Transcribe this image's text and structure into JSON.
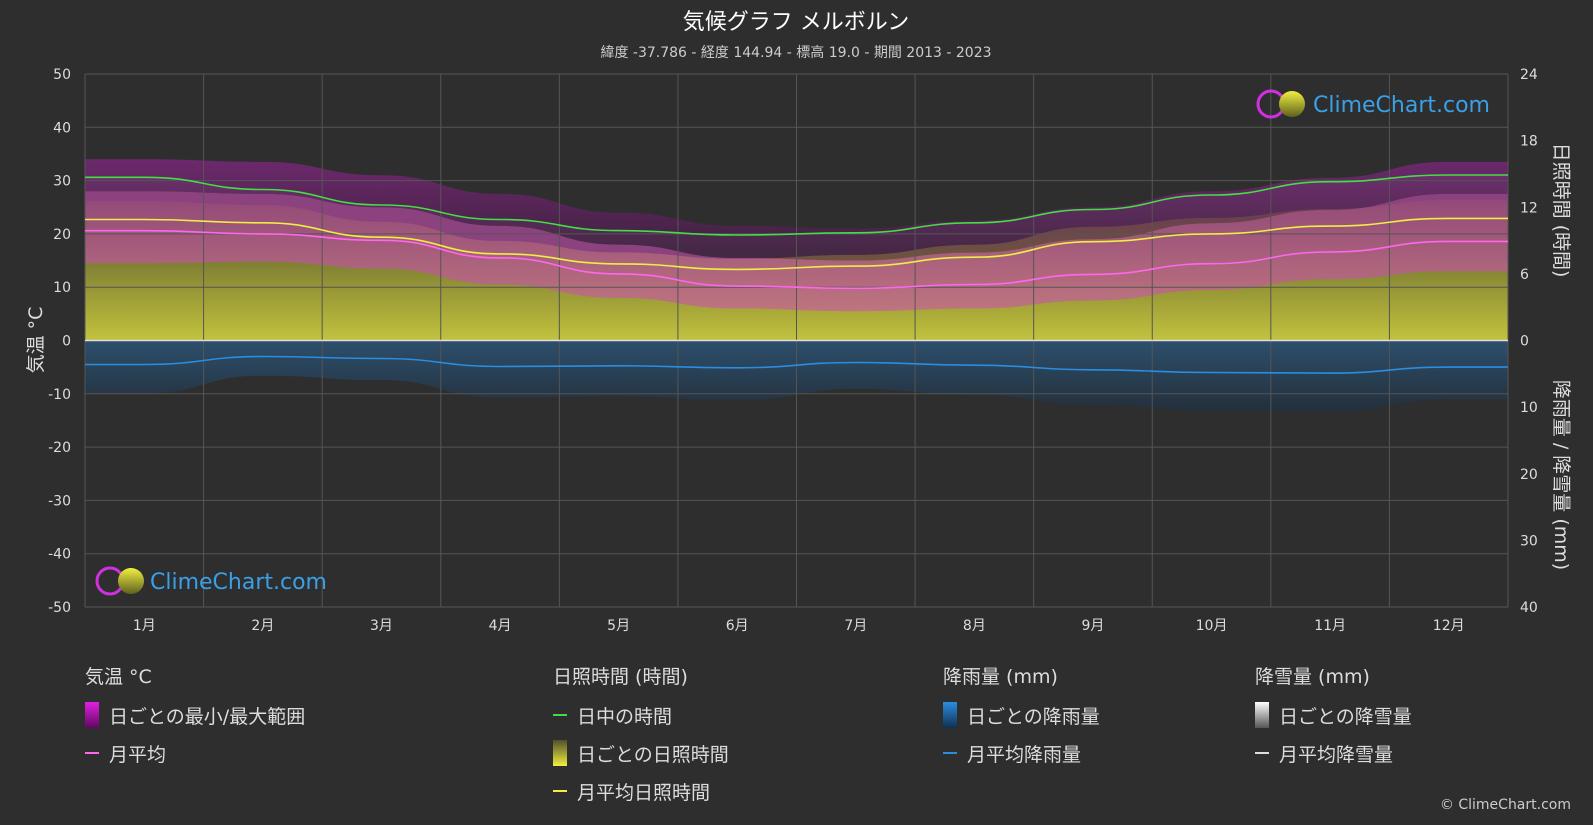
{
  "chart_data": {
    "type": "area",
    "title": "気候グラフ メルボルン",
    "subtitle": "緯度 -37.786 - 経度 144.94 - 標高 19.0 - 期間 2013 - 2023",
    "ylabel_left": "気温 °C",
    "ylabel_right_top": "日照時間 (時間)",
    "ylabel_right_bottom": "降雨量 / 降雪量 (mm)",
    "ylim_left": [
      -50,
      50
    ],
    "left_ticks": [
      "50",
      "40",
      "30",
      "20",
      "10",
      "0",
      "-10",
      "-20",
      "-30",
      "-40",
      "-50"
    ],
    "right_top_ticks": [
      "24",
      "18",
      "12",
      "6",
      "0"
    ],
    "right_bottom_ticks": [
      "10",
      "20",
      "30",
      "40"
    ],
    "categories": [
      "1月",
      "2月",
      "3月",
      "4月",
      "5月",
      "6月",
      "7月",
      "8月",
      "9月",
      "10月",
      "11月",
      "12月"
    ],
    "series": [
      {
        "name": "日中の時間",
        "unit": "hours",
        "color": "#44dd44",
        "values": [
          14.7,
          13.6,
          12.2,
          10.9,
          9.9,
          9.5,
          9.7,
          10.6,
          11.8,
          13.1,
          14.3,
          14.9
        ]
      },
      {
        "name": "月平均日照時間",
        "unit": "hours",
        "color": "#eeee44",
        "values": [
          10.9,
          10.6,
          9.3,
          7.8,
          6.9,
          6.4,
          6.7,
          7.5,
          8.9,
          9.6,
          10.3,
          11.0
        ]
      },
      {
        "name": "月平均",
        "unit": "°C",
        "color": "#ff66ee",
        "values": [
          20.6,
          20.0,
          18.8,
          15.5,
          12.5,
          10.2,
          9.8,
          10.5,
          12.4,
          14.4,
          16.6,
          18.6
        ]
      },
      {
        "name": "月平均降雨量",
        "unit": "mm",
        "color": "#2b8de0",
        "values": [
          3.6,
          2.4,
          2.7,
          3.9,
          3.8,
          4.1,
          3.3,
          3.7,
          4.4,
          4.8,
          4.9,
          4.0
        ]
      }
    ],
    "daily_max_temp": [
      28.0,
      27.5,
      25.0,
      21.5,
      18.0,
      15.5,
      15.0,
      16.5,
      19.0,
      22.0,
      24.5,
      27.5
    ],
    "daily_min_temp": [
      14.5,
      14.8,
      13.5,
      10.5,
      8.0,
      6.0,
      5.5,
      6.0,
      7.5,
      9.5,
      11.5,
      13.0
    ]
  },
  "legend": {
    "temp": {
      "title": "気温 °C",
      "range": "日ごとの最小/最大範囲",
      "avg": "月平均"
    },
    "sun": {
      "title": "日照時間 (時間)",
      "daylight": "日中の時間",
      "daily": "日ごとの日照時間",
      "avg": "月平均日照時間"
    },
    "rain": {
      "title": "降雨量 (mm)",
      "daily": "日ごとの降雨量",
      "avg": "月平均降雨量"
    },
    "snow": {
      "title": "降雪量 (mm)",
      "daily": "日ごとの降雪量",
      "avg": "月平均降雪量"
    }
  },
  "brand": "ClimeChart.com",
  "copyright": "© ClimeChart.com"
}
